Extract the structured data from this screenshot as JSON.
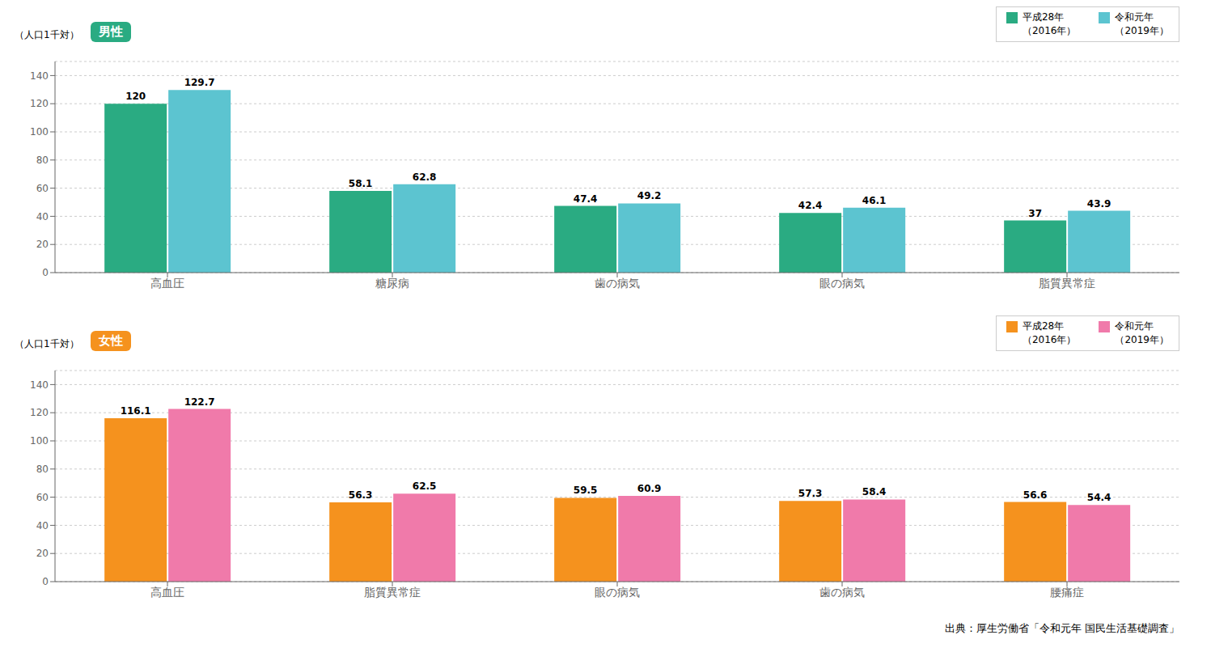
{
  "chart_data": [
    {
      "type": "bar",
      "title": "男性",
      "ylabel": "（人口1千対）",
      "categories": [
        "高血圧",
        "糖尿病",
        "歯の病気",
        "眼の病気",
        "脂質異常症"
      ],
      "series": [
        {
          "name": "平成28年\n（2016年）",
          "color": "#2aab82",
          "values": [
            120.0,
            58.1,
            47.4,
            42.4,
            37.0
          ]
        },
        {
          "name": "令和元年\n（2019年）",
          "color": "#5cc4d0",
          "values": [
            129.7,
            62.8,
            49.2,
            46.1,
            43.9
          ]
        }
      ],
      "ylim": [
        0,
        150
      ],
      "yticks": [
        0,
        20,
        40,
        60,
        80,
        100,
        120,
        140
      ],
      "grid": true,
      "legend": "upper right",
      "data_labels": true
    },
    {
      "type": "bar",
      "title": "女性",
      "ylabel": "（人口1千対）",
      "categories": [
        "高血圧",
        "脂質異常症",
        "眼の病気",
        "歯の病気",
        "腰痛症"
      ],
      "series": [
        {
          "name": "平成28年\n（2016年）",
          "color": "#f5921e",
          "values": [
            116.1,
            56.3,
            59.5,
            57.3,
            56.6
          ]
        },
        {
          "name": "令和元年\n（2019年）",
          "color": "#f07aaa",
          "values": [
            122.7,
            62.5,
            60.9,
            58.4,
            54.4
          ]
        }
      ],
      "ylim": [
        0,
        150
      ],
      "yticks": [
        0,
        20,
        40,
        60,
        80,
        100,
        120,
        140
      ],
      "grid": true,
      "legend": "upper right",
      "data_labels": true,
      "annotations": [
        "出典：厚生労働省「令和元年 国民生活基礎調査」"
      ]
    }
  ]
}
